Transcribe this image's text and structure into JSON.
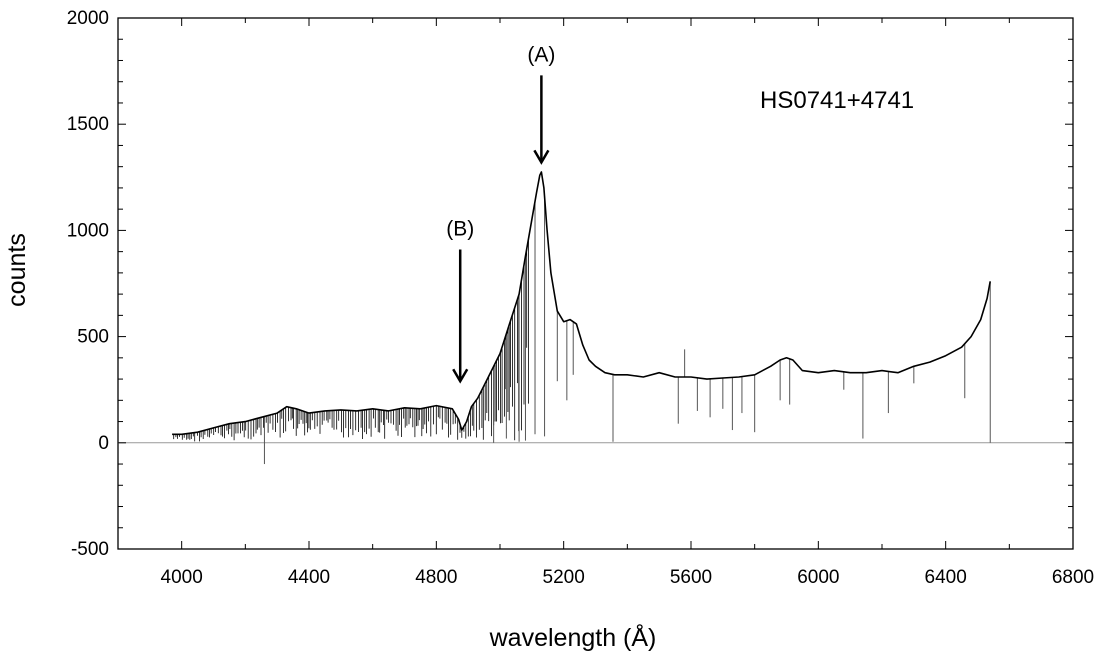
{
  "chart_data": {
    "type": "line",
    "title": "",
    "xlabel": "wavelength  (Å)",
    "ylabel": "counts",
    "xlim": [
      3800,
      6800
    ],
    "ylim": [
      -500,
      2000
    ],
    "x_ticks": [
      4000,
      4400,
      4800,
      5200,
      5600,
      6000,
      6400,
      6800
    ],
    "y_ticks": [
      -500,
      0,
      500,
      1000,
      1500,
      2000
    ],
    "zero_line": 0,
    "grid": false,
    "legend": "none",
    "object_label": "HS0741+4741",
    "annotations": [
      {
        "text": "(A)",
        "x": 5130,
        "y_tip": 1320,
        "y_tail": 1730
      },
      {
        "text": "(B)",
        "x": 4875,
        "y_tip": 290,
        "y_tail": 910
      }
    ],
    "series": [
      {
        "color": "#000000",
        "x": [
          3970,
          4000,
          4050,
          4100,
          4150,
          4200,
          4250,
          4300,
          4330,
          4360,
          4400,
          4450,
          4500,
          4550,
          4600,
          4650,
          4700,
          4750,
          4800,
          4850,
          4870,
          4880,
          4895,
          4910,
          4930,
          4960,
          5000,
          5030,
          5060,
          5080,
          5100,
          5115,
          5125,
          5130,
          5138,
          5148,
          5160,
          5180,
          5200,
          5220,
          5240,
          5260,
          5280,
          5300,
          5330,
          5360,
          5400,
          5450,
          5500,
          5550,
          5600,
          5650,
          5700,
          5750,
          5800,
          5850,
          5880,
          5900,
          5920,
          5950,
          6000,
          6050,
          6100,
          6150,
          6200,
          6250,
          6300,
          6350,
          6400,
          6450,
          6480,
          6510,
          6530,
          6540
        ],
        "y": [
          40,
          40,
          50,
          70,
          90,
          100,
          120,
          140,
          170,
          160,
          140,
          150,
          155,
          150,
          160,
          150,
          165,
          160,
          175,
          160,
          110,
          60,
          100,
          170,
          210,
          300,
          420,
          560,
          700,
          880,
          1050,
          1180,
          1260,
          1275,
          1200,
          1000,
          800,
          620,
          570,
          580,
          560,
          460,
          390,
          360,
          330,
          320,
          320,
          310,
          330,
          310,
          310,
          300,
          305,
          310,
          320,
          360,
          390,
          400,
          390,
          340,
          330,
          340,
          330,
          330,
          340,
          330,
          360,
          380,
          410,
          450,
          500,
          580,
          680,
          760
        ]
      }
    ],
    "absorption_lines": [
      {
        "x": 4260,
        "min": -100
      },
      {
        "x": 4980,
        "min": 0
      },
      {
        "x": 5020,
        "min": 20
      },
      {
        "x": 5060,
        "min": 5
      },
      {
        "x": 5080,
        "min": 10
      },
      {
        "x": 5110,
        "min": 40
      },
      {
        "x": 5140,
        "min": 30
      },
      {
        "x": 5180,
        "min": 290
      },
      {
        "x": 5210,
        "min": 200
      },
      {
        "x": 5230,
        "min": 320
      },
      {
        "x": 5355,
        "min": 5
      },
      {
        "x": 5560,
        "min": 90
      },
      {
        "x": 5580,
        "min": 440
      },
      {
        "x": 5620,
        "min": 150
      },
      {
        "x": 5660,
        "min": 120
      },
      {
        "x": 5700,
        "min": 160
      },
      {
        "x": 5730,
        "min": 60
      },
      {
        "x": 5760,
        "min": 140
      },
      {
        "x": 5800,
        "min": 50
      },
      {
        "x": 5880,
        "min": 200
      },
      {
        "x": 5910,
        "min": 180
      },
      {
        "x": 6080,
        "min": 250
      },
      {
        "x": 6140,
        "min": 20
      },
      {
        "x": 6220,
        "min": 140
      },
      {
        "x": 6300,
        "min": 280
      },
      {
        "x": 6460,
        "min": 210
      },
      {
        "x": 6540,
        "min": 0
      }
    ]
  }
}
